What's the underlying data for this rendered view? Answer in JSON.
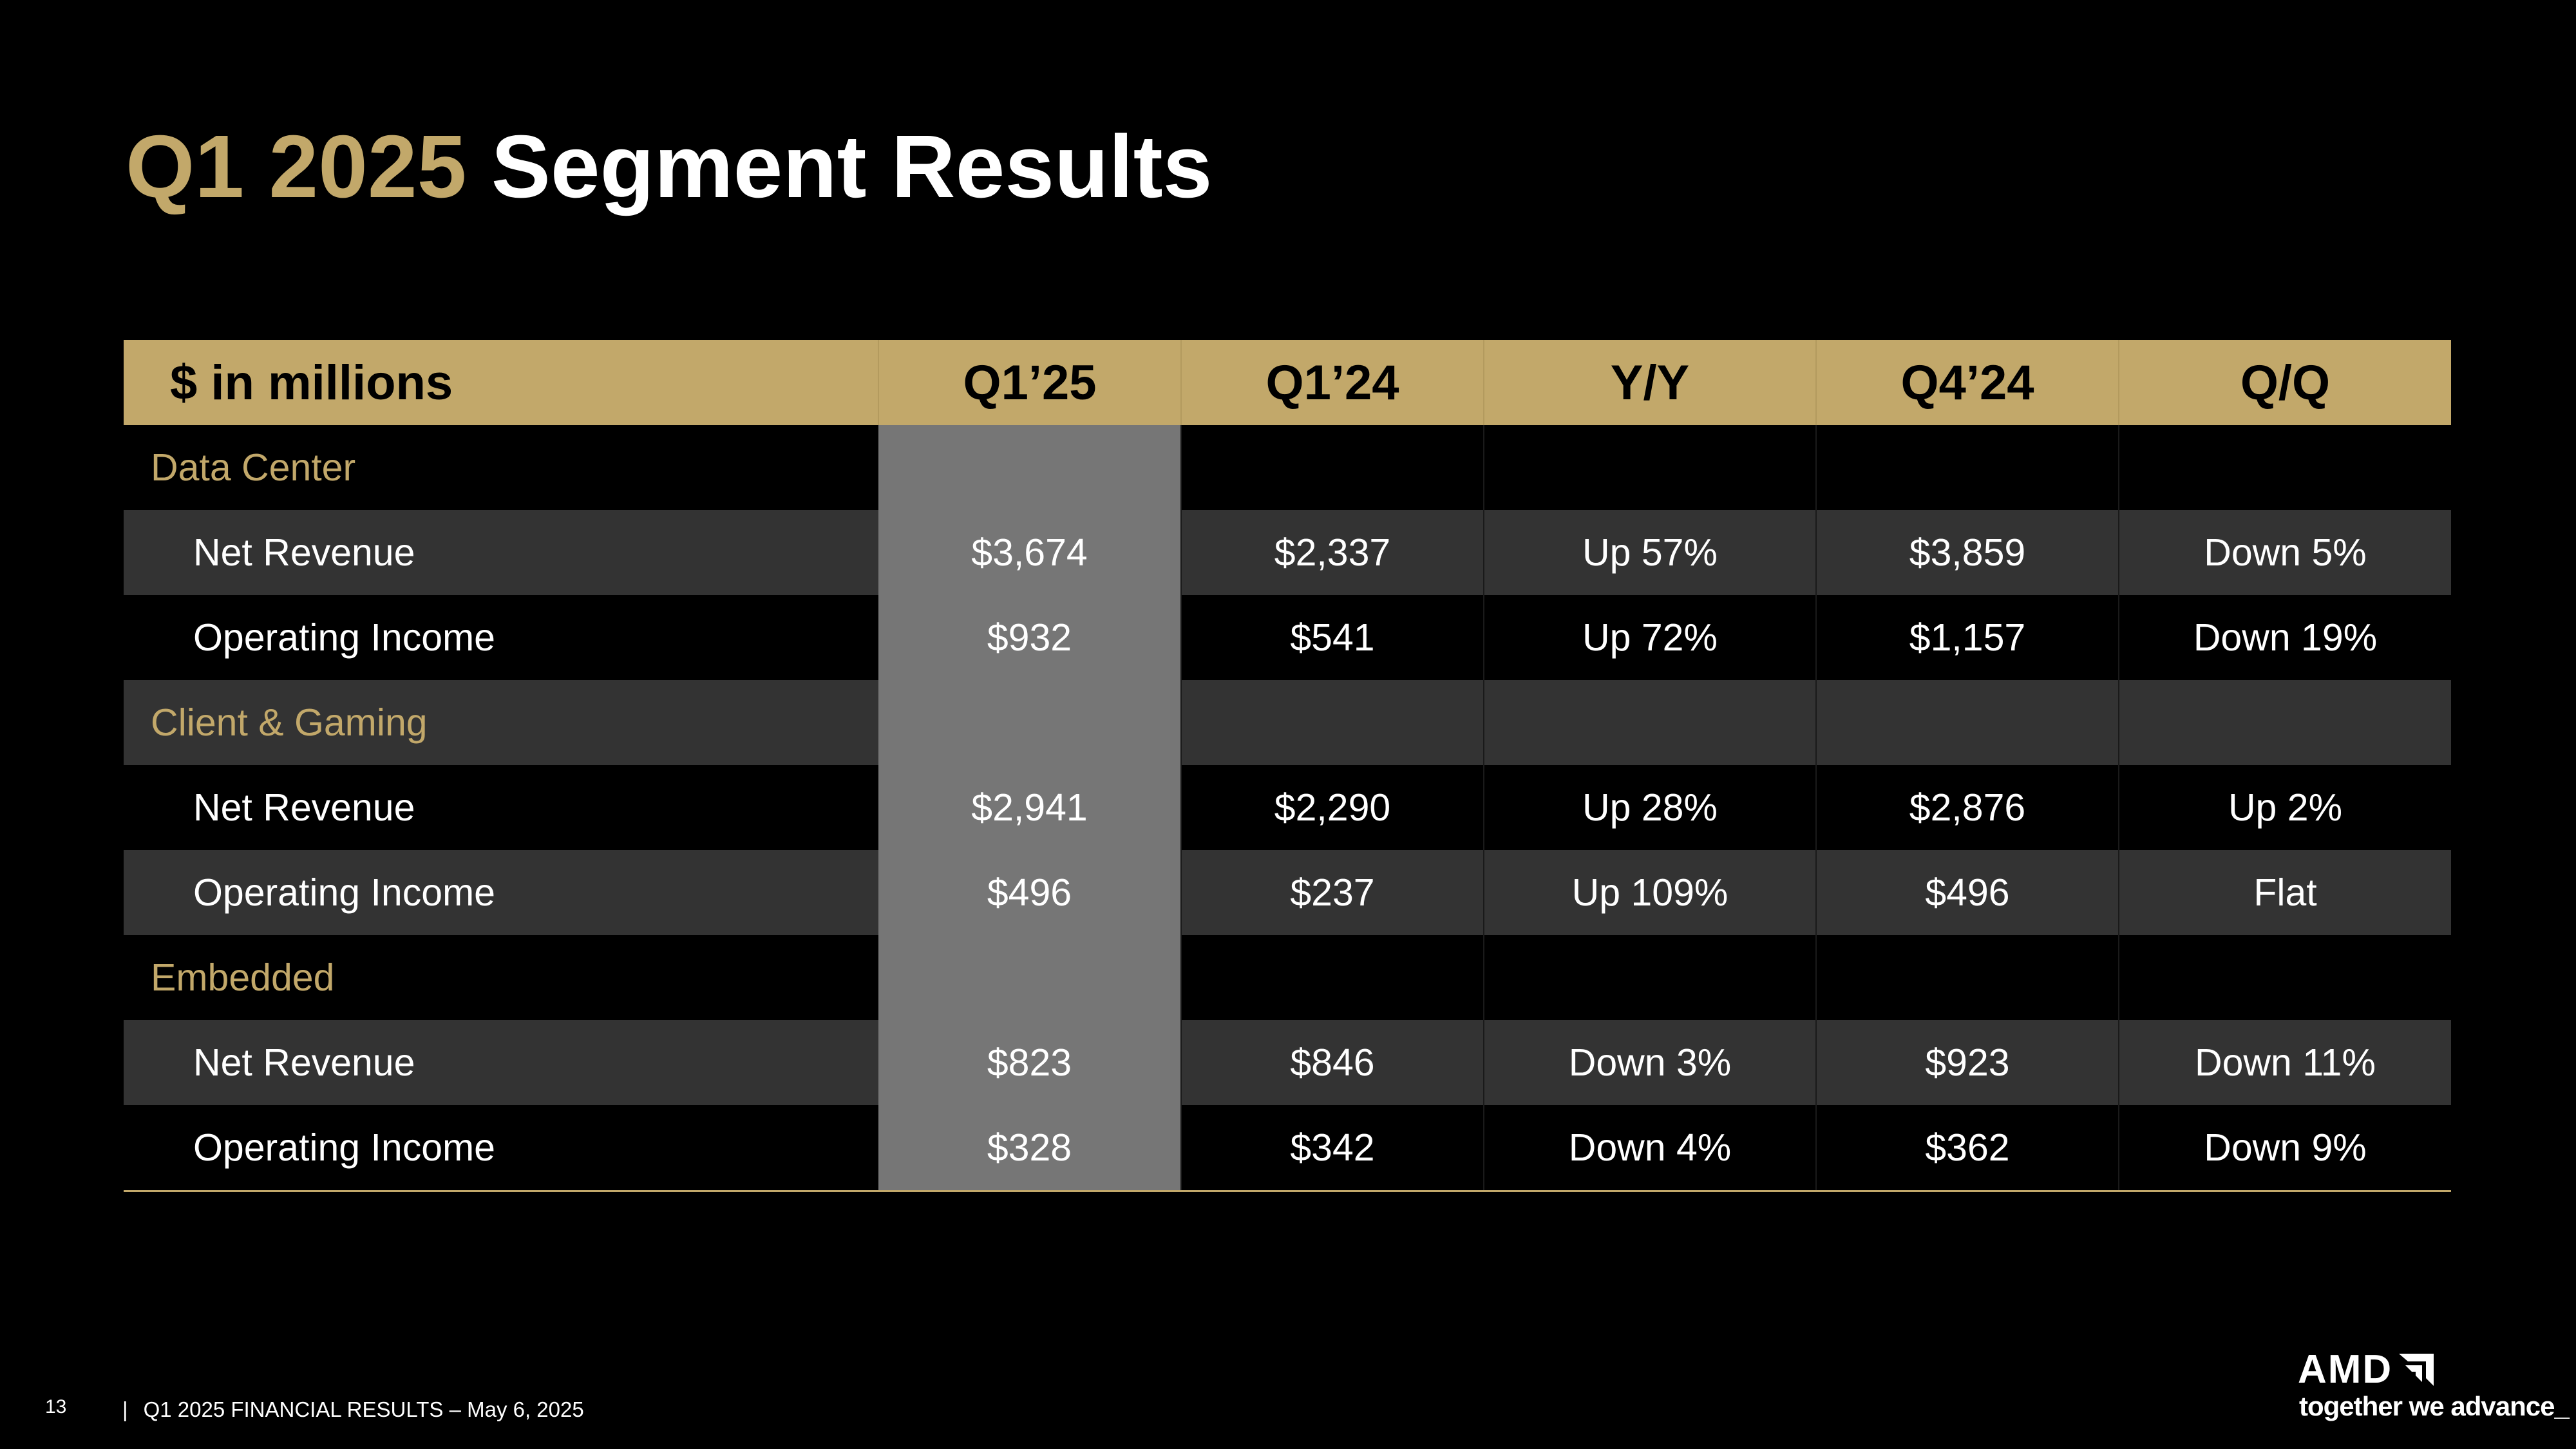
{
  "title": {
    "accent": "Q1 2025",
    "main": "Segment Results"
  },
  "table": {
    "headers": [
      "$ in millions",
      "Q1’25",
      "Q1’24",
      "Y/Y",
      "Q4’24",
      "Q/Q"
    ],
    "rows": [
      {
        "type": "section",
        "cells": [
          "Data Center",
          "",
          "",
          "",
          "",
          ""
        ]
      },
      {
        "type": "data",
        "cells": [
          "Net Revenue",
          "$3,674",
          "$2,337",
          "Up 57%",
          "$3,859",
          "Down 5%"
        ]
      },
      {
        "type": "data",
        "cells": [
          "Operating Income",
          "$932",
          "$541",
          "Up 72%",
          "$1,157",
          "Down 19%"
        ]
      },
      {
        "type": "section",
        "cells": [
          "Client & Gaming",
          "",
          "",
          "",
          "",
          ""
        ]
      },
      {
        "type": "data",
        "cells": [
          "Net Revenue",
          "$2,941",
          "$2,290",
          "Up 28%",
          "$2,876",
          "Up 2%"
        ]
      },
      {
        "type": "data",
        "cells": [
          "Operating Income",
          "$496",
          "$237",
          "Up 109%",
          "$496",
          "Flat"
        ]
      },
      {
        "type": "section",
        "cells": [
          "Embedded",
          "",
          "",
          "",
          "",
          ""
        ]
      },
      {
        "type": "data",
        "cells": [
          "Net Revenue",
          "$823",
          "$846",
          "Down 3%",
          "$923",
          "Down 11%"
        ]
      },
      {
        "type": "data",
        "cells": [
          "Operating Income",
          "$328",
          "$342",
          "Down 4%",
          "$362",
          "Down 9%"
        ]
      }
    ]
  },
  "footer": {
    "page_number": "13",
    "separator": "|",
    "text": "Q1 2025 FINANCIAL RESULTS – May 6, 2025"
  },
  "logo": {
    "wordmark": "AMD",
    "tagline": "together we advance_"
  },
  "colors": {
    "accent": "#c2a86a",
    "background": "#000000",
    "band": "#333333",
    "highlight_column": "#767676"
  }
}
